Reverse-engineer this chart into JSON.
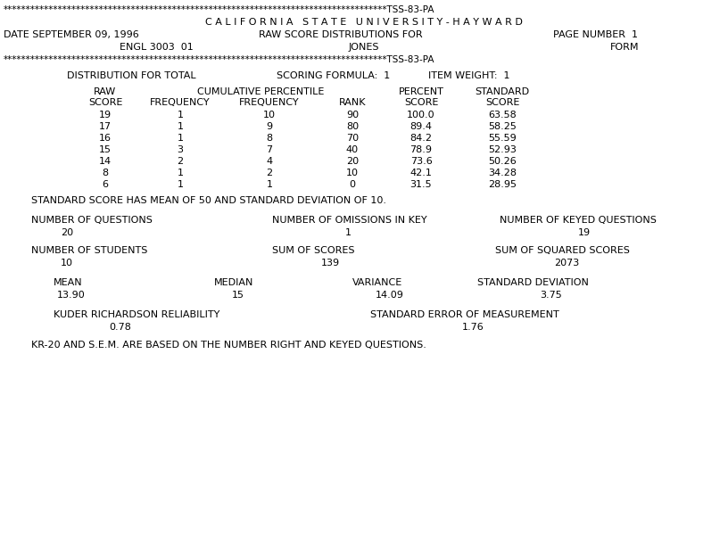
{
  "bg_color": "#ffffff",
  "stars_line": "************************************************************************************TSS-83-PA",
  "header1": "C A L I F O R N I A   S T A T E   U N I V E R S I T Y - H A Y W A R D",
  "header2_left": "DATE SEPTEMBER 09, 1996",
  "header2_mid": "RAW SCORE DISTRIBUTIONS FOR",
  "header2_right": "PAGE NUMBER  1",
  "header3_left": "ENGL 3003  01",
  "header3_mid": "JONES",
  "header3_right": "FORM",
  "dist_line1": "DISTRIBUTION FOR TOTAL",
  "dist_line2": "SCORING FORMULA:  1",
  "dist_line3": "ITEM WEIGHT:  1",
  "table_data": [
    [
      "19",
      "1",
      "10",
      "90",
      "100.0",
      "63.58"
    ],
    [
      "17",
      "1",
      "9",
      "80",
      "89.4",
      "58.25"
    ],
    [
      "16",
      "1",
      "8",
      "70",
      "84.2",
      "55.59"
    ],
    [
      "15",
      "3",
      "7",
      "40",
      "78.9",
      "52.93"
    ],
    [
      "14",
      "2",
      "4",
      "20",
      "73.6",
      "50.26"
    ],
    [
      "8",
      "1",
      "2",
      "10",
      "42.1",
      "34.28"
    ],
    [
      "6",
      "1",
      "1",
      "0",
      "31.5",
      "28.95"
    ]
  ],
  "std_score_note": "STANDARD SCORE HAS MEAN OF 50 AND STANDARD DEVIATION OF 10.",
  "num_questions_label": "NUMBER OF QUESTIONS",
  "num_questions_val": "20",
  "num_omissions_label": "NUMBER OF OMISSIONS IN KEY",
  "num_omissions_val": "1",
  "num_keyed_label": "NUMBER OF KEYED QUESTIONS",
  "num_keyed_val": "19",
  "num_students_label": "NUMBER OF STUDENTS",
  "num_students_val": "10",
  "sum_scores_label": "SUM OF SCORES",
  "sum_scores_val": "139",
  "sum_sq_label": "SUM OF SQUARED SCORES",
  "sum_sq_val": "2073",
  "mean_label": "MEAN",
  "mean_val": "13.90",
  "median_label": "MEDIAN",
  "median_val": "15",
  "variance_label": "VARIANCE",
  "variance_val": "14.09",
  "std_dev_label": "STANDARD DEVIATION",
  "std_dev_val": "3.75",
  "kr_label": "KUDER RICHARDSON RELIABILITY",
  "kr_val": "0.78",
  "sem_label": "STANDARD ERROR OF MEASUREMENT",
  "sem_val": "1.76",
  "footer_note": "KR-20 AND S.E.M. ARE BASED ON THE NUMBER RIGHT AND KEYED QUESTIONS."
}
